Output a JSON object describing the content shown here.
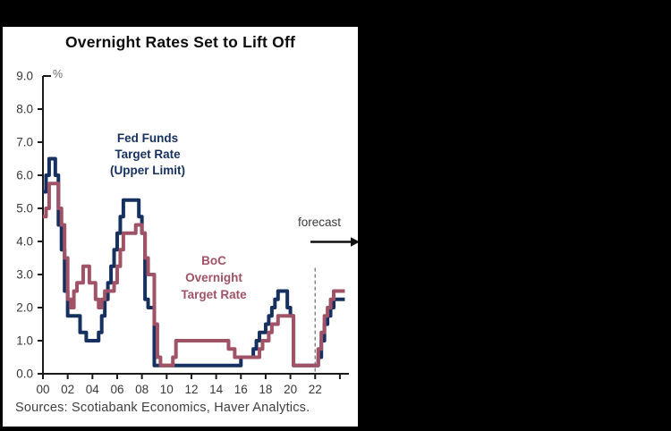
{
  "window": {
    "background_color": "#000000",
    "panel_color": "#ffffff"
  },
  "chart": {
    "title": "Overnight Rates Set to Lift Off",
    "unit_label": "%",
    "forecast_label": "forecast",
    "sources": "Sources: Scotiabank Economics, Haver Analytics.",
    "fed_series_label": "Fed Funds\nTarget Rate\n(Upper Limit)",
    "boc_series_label": "BoC\nOvernight\nTarget Rate",
    "fed_color": "#16305f",
    "boc_color": "#a05266",
    "axis_color": "#1a1a1a",
    "tick_label_color": "#383838",
    "dashed_line_color": "#808080"
  },
  "chart_data": {
    "type": "line",
    "step": true,
    "title": "Overnight Rates Set to Lift Off",
    "ylabel": "%",
    "xlabel": "",
    "ylim": [
      0,
      9
    ],
    "xlim": [
      2000,
      2024.4
    ],
    "grid": false,
    "forecast_start": 2022,
    "y_ticks": [
      9,
      8,
      7,
      6,
      5,
      4,
      3,
      2,
      1,
      0
    ],
    "y_tick_labels": [
      "9.0",
      "8.0",
      "7.0",
      "6.0",
      "5.0",
      "4.0",
      "3.0",
      "2.0",
      "1.0",
      "0.0"
    ],
    "x_ticks": [
      2000,
      2002,
      2004,
      2006,
      2008,
      2010,
      2012,
      2014,
      2016,
      2018,
      2020,
      2022,
      2024
    ],
    "x_tick_labels": [
      "00",
      "02",
      "04",
      "06",
      "08",
      "10",
      "12",
      "14",
      "16",
      "18",
      "20",
      "22",
      ""
    ],
    "x": [
      2000,
      2000.25,
      2000.5,
      2000.75,
      2001,
      2001.25,
      2001.5,
      2001.75,
      2002,
      2002.25,
      2002.5,
      2002.75,
      2003,
      2003.25,
      2003.5,
      2003.75,
      2004,
      2004.25,
      2004.5,
      2004.75,
      2005,
      2005.25,
      2005.5,
      2005.75,
      2006,
      2006.25,
      2006.5,
      2006.75,
      2007,
      2007.25,
      2007.5,
      2007.75,
      2008,
      2008.25,
      2008.5,
      2008.75,
      2009,
      2009.25,
      2009.5,
      2009.75,
      2010,
      2010.25,
      2010.5,
      2010.75,
      2011,
      2011.25,
      2011.5,
      2011.75,
      2012,
      2012.25,
      2012.5,
      2012.75,
      2013,
      2013.25,
      2013.5,
      2013.75,
      2014,
      2014.25,
      2014.5,
      2014.75,
      2015,
      2015.25,
      2015.5,
      2015.75,
      2016,
      2016.25,
      2016.5,
      2016.75,
      2017,
      2017.25,
      2017.5,
      2017.75,
      2018,
      2018.25,
      2018.5,
      2018.75,
      2019,
      2019.25,
      2019.5,
      2019.75,
      2020,
      2020.25,
      2020.5,
      2020.75,
      2021,
      2021.25,
      2021.5,
      2021.75,
      2022,
      2022.25,
      2022.5,
      2022.75,
      2023,
      2023.25,
      2023.5,
      2023.75
    ],
    "series": [
      {
        "name": "Fed Funds Target Rate (Upper Limit)",
        "color": "#16305f",
        "values": [
          5.5,
          6.0,
          6.5,
          6.5,
          6.0,
          4.5,
          3.75,
          2.5,
          1.75,
          1.75,
          1.75,
          1.75,
          1.25,
          1.25,
          1.0,
          1.0,
          1.0,
          1.0,
          1.25,
          1.75,
          2.25,
          2.75,
          3.25,
          3.75,
          4.25,
          4.75,
          5.25,
          5.25,
          5.25,
          5.25,
          5.25,
          4.75,
          4.25,
          2.25,
          2.0,
          2.0,
          0.25,
          0.25,
          0.25,
          0.25,
          0.25,
          0.25,
          0.25,
          0.25,
          0.25,
          0.25,
          0.25,
          0.25,
          0.25,
          0.25,
          0.25,
          0.25,
          0.25,
          0.25,
          0.25,
          0.25,
          0.25,
          0.25,
          0.25,
          0.25,
          0.25,
          0.25,
          0.25,
          0.25,
          0.5,
          0.5,
          0.5,
          0.5,
          0.75,
          1.0,
          1.25,
          1.25,
          1.5,
          1.75,
          2.0,
          2.25,
          2.5,
          2.5,
          2.5,
          2.0,
          1.75,
          0.25,
          0.25,
          0.25,
          0.25,
          0.25,
          0.25,
          0.25,
          0.25,
          0.5,
          1.0,
          1.5,
          1.75,
          2.0,
          2.25,
          2.25
        ]
      },
      {
        "name": "BoC Overnight Target Rate",
        "color": "#a05266",
        "values": [
          4.75,
          5.0,
          5.75,
          5.75,
          5.75,
          5.0,
          4.5,
          3.5,
          2.25,
          2.0,
          2.5,
          2.75,
          2.75,
          3.25,
          3.25,
          2.75,
          2.75,
          2.25,
          2.0,
          2.25,
          2.5,
          2.5,
          2.5,
          2.75,
          3.25,
          3.75,
          4.25,
          4.25,
          4.25,
          4.25,
          4.5,
          4.5,
          4.25,
          3.5,
          3.0,
          3.0,
          1.5,
          0.5,
          0.25,
          0.25,
          0.25,
          0.25,
          0.5,
          1.0,
          1.0,
          1.0,
          1.0,
          1.0,
          1.0,
          1.0,
          1.0,
          1.0,
          1.0,
          1.0,
          1.0,
          1.0,
          1.0,
          1.0,
          1.0,
          1.0,
          0.75,
          0.75,
          0.5,
          0.5,
          0.5,
          0.5,
          0.5,
          0.5,
          0.5,
          0.5,
          0.75,
          1.0,
          1.0,
          1.25,
          1.5,
          1.5,
          1.75,
          1.75,
          1.75,
          1.75,
          1.75,
          0.25,
          0.25,
          0.25,
          0.25,
          0.25,
          0.25,
          0.25,
          0.25,
          0.75,
          1.25,
          1.75,
          2.0,
          2.25,
          2.5,
          2.5
        ]
      }
    ],
    "legend_position": "inline-annotations",
    "annotations": [
      "forecast"
    ]
  }
}
